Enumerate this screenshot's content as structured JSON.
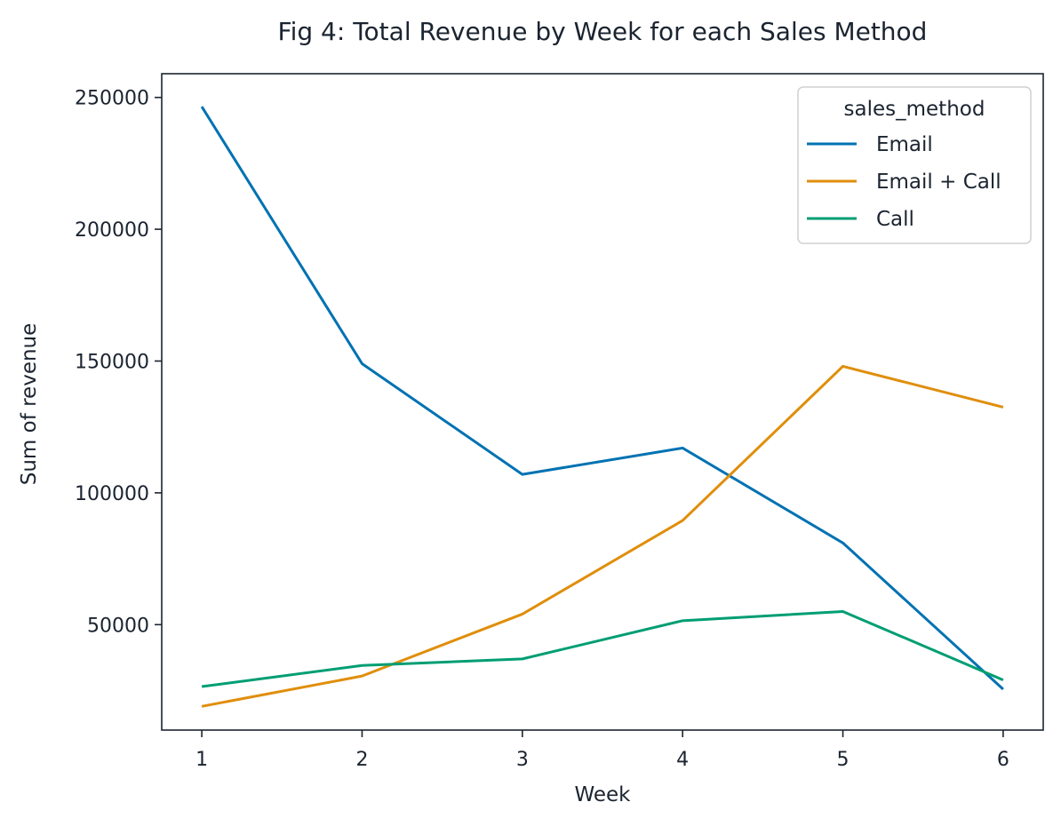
{
  "chart_data": {
    "type": "line",
    "title": "Fig 4: Total Revenue by Week for each Sales Method",
    "xlabel": "Week",
    "ylabel": "Sum of revenue",
    "x": [
      1,
      2,
      3,
      4,
      5,
      6
    ],
    "xticks": [
      "1",
      "2",
      "3",
      "4",
      "5",
      "6"
    ],
    "yticks": [
      "50000",
      "100000",
      "150000",
      "200000",
      "250000"
    ],
    "xlim": [
      0.75,
      6.25
    ],
    "ylim": [
      10000,
      259000
    ],
    "grid": false,
    "legend": {
      "title": "sales_method",
      "placement": "top-right"
    },
    "series": [
      {
        "name": "Email",
        "color": "#0072b2",
        "values": [
          246500,
          149000,
          107000,
          117000,
          81000,
          25500
        ]
      },
      {
        "name": "Email + Call",
        "color": "#e08e0b",
        "values": [
          19000,
          30500,
          54000,
          89500,
          148000,
          132500
        ]
      },
      {
        "name": "Call",
        "color": "#009e73",
        "values": [
          26500,
          34500,
          37000,
          51500,
          55000,
          29000
        ]
      }
    ]
  }
}
